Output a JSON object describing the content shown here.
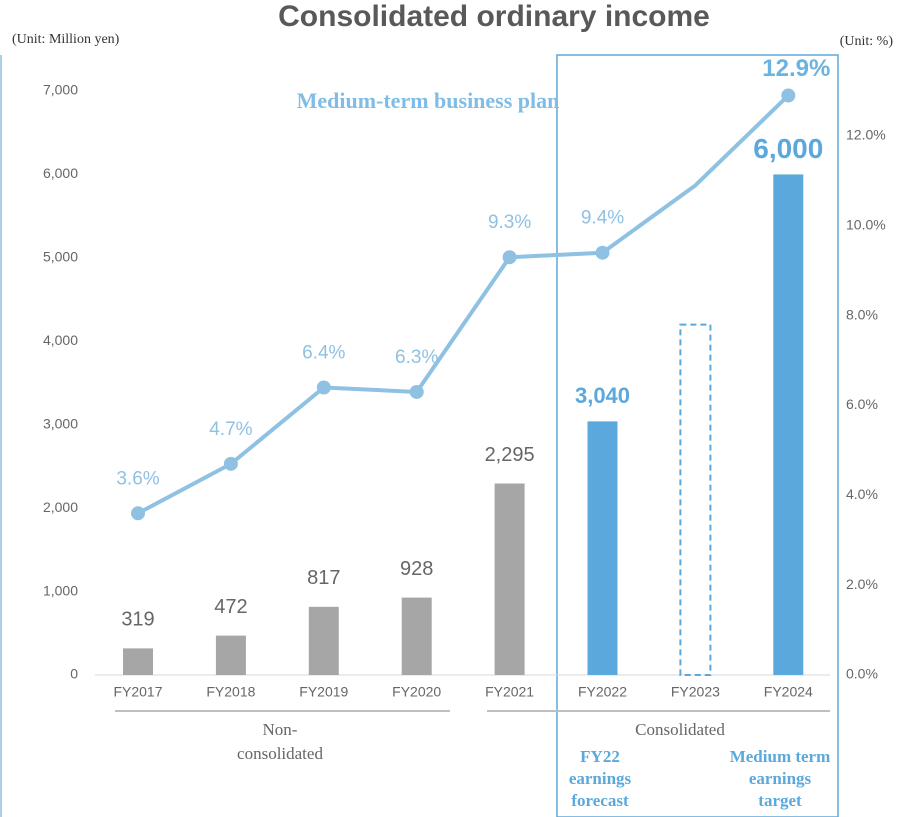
{
  "chart_data": {
    "type": "bar-line",
    "title": "Consolidated ordinary income",
    "y_unit": "(Unit: Million yen)",
    "y2_unit": "(Unit: %)",
    "annotation": "Medium-term business plan",
    "categories": [
      "FY2017",
      "FY2018",
      "FY2019",
      "FY2020",
      "FY2021",
      "FY2022",
      "FY2023",
      "FY2024"
    ],
    "bars": {
      "values": [
        319,
        472,
        817,
        928,
        2295,
        3040,
        4200,
        6000
      ],
      "value_labels": [
        "319",
        "472",
        "817",
        "928",
        "2,295",
        "3,040",
        null,
        "6,000"
      ],
      "colors": [
        "#a6a6a6",
        "#a6a6a6",
        "#a6a6a6",
        "#a6a6a6",
        "#a6a6a6",
        "#5ba9dc",
        "#5ba9dc",
        "#5ba9dc"
      ],
      "dashed": [
        false,
        false,
        false,
        false,
        false,
        false,
        true,
        false
      ],
      "highlight": [
        false,
        false,
        false,
        false,
        false,
        true,
        false,
        true
      ]
    },
    "line": {
      "axis": "y2",
      "color": "#8fc1e3",
      "values": [
        3.6,
        4.7,
        6.4,
        6.3,
        9.3,
        9.4,
        10.9,
        12.9
      ],
      "value_labels": [
        "3.6%",
        "4.7%",
        "6.4%",
        "6.3%",
        "9.3%",
        "9.4%",
        null,
        "12.9%"
      ],
      "markers": [
        true,
        true,
        true,
        true,
        true,
        true,
        false,
        true
      ],
      "highlight": [
        false,
        false,
        false,
        false,
        false,
        false,
        false,
        true
      ]
    },
    "groups": [
      {
        "label": "Non-consolidated",
        "from": 0,
        "to": 3
      },
      {
        "label": "Consolidated",
        "from": 4,
        "to": 7
      }
    ],
    "notes": [
      "FY22 earnings forecast",
      "Medium term earnings target"
    ],
    "ylim": [
      0,
      7000
    ],
    "yticks": [
      0,
      {
        "value": 1000,
        "label": "1,000"
      },
      {
        "value": 2000,
        "label": "2,000"
      },
      {
        "value": 3000,
        "label": "3,000"
      },
      {
        "value": 4000,
        "label": "4,000"
      },
      {
        "value": 5000,
        "label": "5,000"
      },
      {
        "value": 6000,
        "label": "6,000"
      },
      {
        "value": 7000,
        "label": "7,000"
      }
    ],
    "y2lim": [
      0,
      13
    ],
    "y2ticks": [
      {
        "value": 0,
        "label": "0.0%"
      },
      {
        "value": 2,
        "label": "2.0%"
      },
      {
        "value": 4,
        "label": "4.0%"
      },
      {
        "value": 6,
        "label": "6.0%"
      },
      {
        "value": 8,
        "label": "8.0%"
      },
      {
        "value": 10,
        "label": "10.0%"
      },
      {
        "value": 12,
        "label": "12.0%"
      }
    ]
  }
}
